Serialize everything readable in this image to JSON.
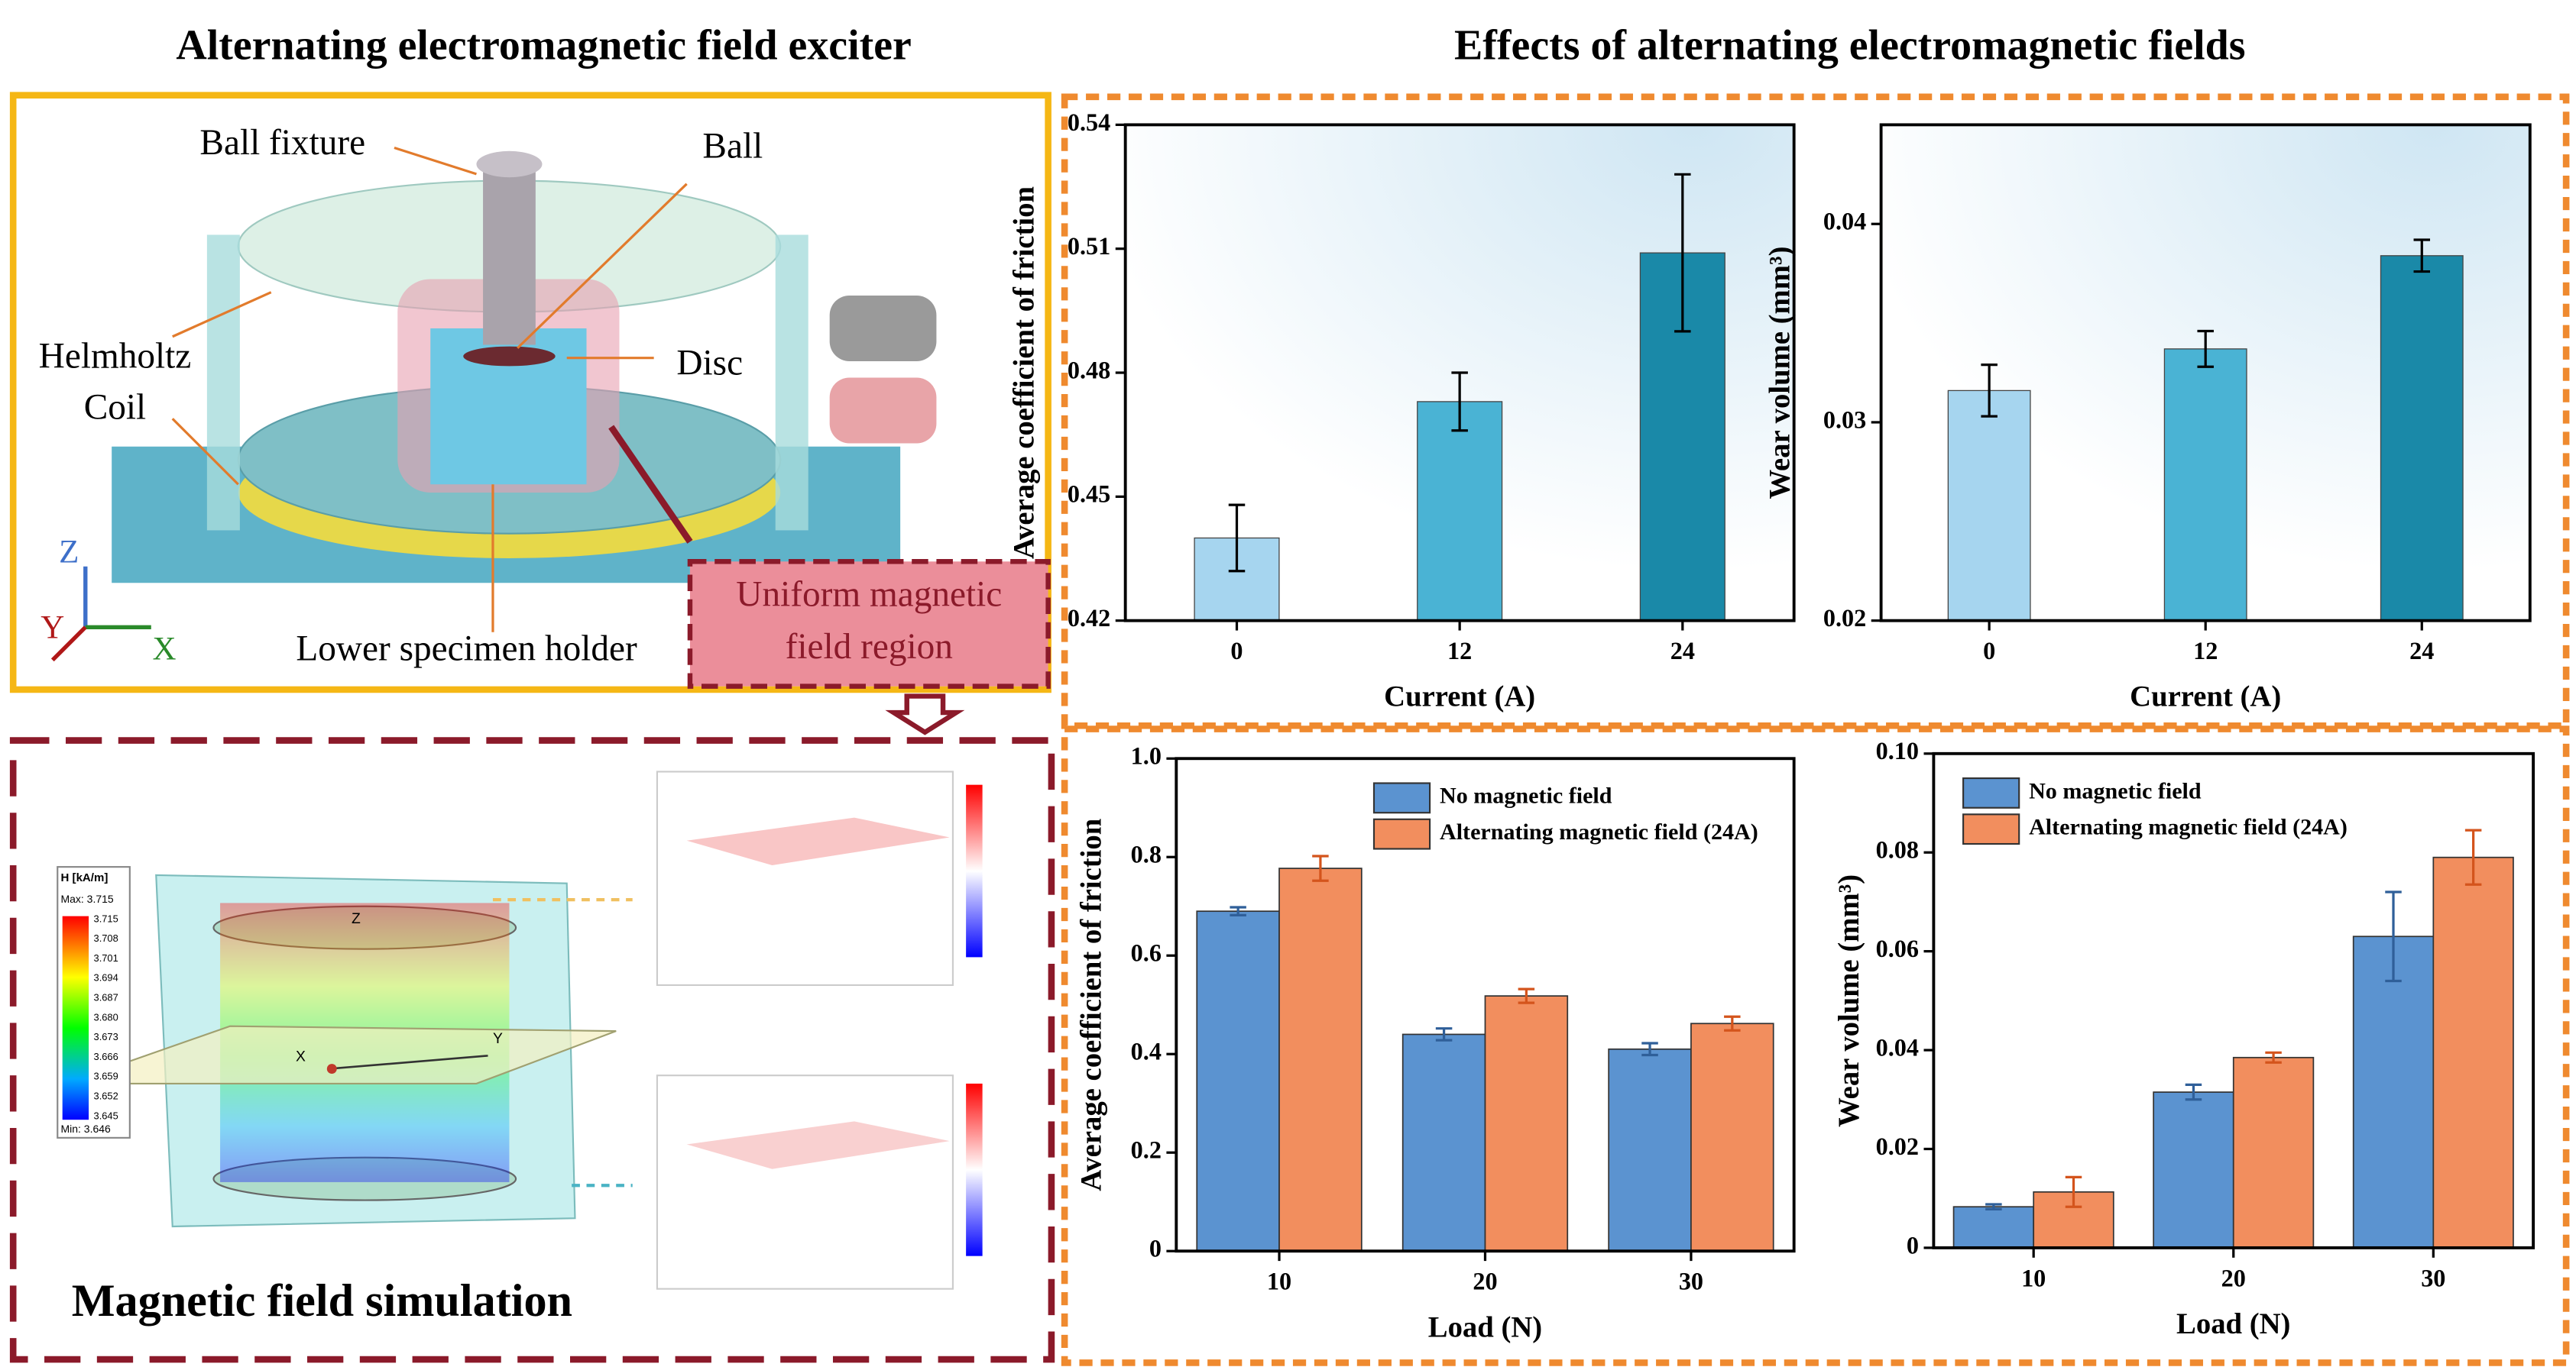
{
  "exciter": {
    "title": "Alternating electromagnetic field exciter",
    "ball_fixture": "Ball fixture",
    "ball": "Ball",
    "coil": [
      "Helmholtz",
      "Coil"
    ],
    "disc": "Disc",
    "holder": "Lower specimen holder",
    "region": [
      "Uniform magnetic",
      "field region"
    ],
    "axes": [
      "Z",
      "Y",
      "X"
    ]
  },
  "simulation": {
    "title": "Magnetic field simulation",
    "unit": "H [kA/m]",
    "max": "Max: 3.715",
    "min": "Min: 3.646",
    "scale": [
      "3.715",
      "3.708",
      "3.701",
      "3.694",
      "3.687",
      "3.680",
      "3.673",
      "3.666",
      "3.659",
      "3.652",
      "3.645"
    ],
    "axes": [
      "Z",
      "X",
      "Y"
    ]
  },
  "effects_title": "Effects of alternating electromagnetic fields",
  "charts": [
    {
      "type": "bar",
      "xlabel": "Current (A)",
      "ylabel": "Average coefficient of friction",
      "categories": [
        "0",
        "12",
        "24"
      ],
      "values": [
        0.44,
        0.473,
        0.509
      ],
      "errors": [
        0.008,
        0.007,
        0.019
      ],
      "colors": [
        "#a6d5ef",
        "#4ab3d4",
        "#1a89a8"
      ],
      "ylim": [
        0.42,
        0.54
      ],
      "yticks": [
        0.42,
        0.45,
        0.48,
        0.51,
        0.54
      ]
    },
    {
      "type": "bar",
      "xlabel": "Current (A)",
      "ylabel": "Wear volume (mm³)",
      "categories": [
        "0",
        "12",
        "24"
      ],
      "values": [
        0.0316,
        0.0337,
        0.0384
      ],
      "errors": [
        0.0013,
        0.0009,
        0.0008
      ],
      "colors": [
        "#a6d5ef",
        "#4ab3d4",
        "#1a89a8"
      ],
      "ylim": [
        0.02,
        0.045
      ],
      "yticks": [
        0.02,
        0.03,
        0.04
      ]
    },
    {
      "type": "grouped_bar",
      "xlabel": "Load (N)",
      "ylabel": "Average coefficient of friction",
      "categories": [
        "10",
        "20",
        "30"
      ],
      "legend": "upper center",
      "series": [
        {
          "name": "No magnetic field",
          "color": "#5b93d0",
          "error_color": "#2f5f99",
          "values": [
            0.69,
            0.44,
            0.41
          ],
          "errors": [
            0.008,
            0.012,
            0.012
          ]
        },
        {
          "name": "Alternating magnetic field (24A)",
          "color": "#f28e5e",
          "error_color": "#d4541c",
          "values": [
            0.777,
            0.518,
            0.462
          ],
          "errors": [
            0.025,
            0.014,
            0.014
          ]
        }
      ],
      "ylim": [
        0,
        1
      ],
      "yticks": [
        0,
        0.2,
        0.4,
        0.6,
        0.8,
        {
          "value": 1,
          "label": "1.0"
        }
      ]
    },
    {
      "type": "grouped_bar",
      "xlabel": "Load (N)",
      "ylabel": "Wear volume (mm³)",
      "categories": [
        "10",
        "20",
        "30"
      ],
      "legend": "upper left",
      "series": [
        {
          "name": "No magnetic field",
          "color": "#5b93d0",
          "error_color": "#2f5f99",
          "values": [
            0.0083,
            0.0315,
            0.063
          ],
          "errors": [
            0.0005,
            0.0015,
            0.009
          ]
        },
        {
          "name": "Alternating magnetic field  (24A)",
          "color": "#f28e5e",
          "error_color": "#d4541c",
          "values": [
            0.0113,
            0.0385,
            0.079
          ],
          "errors": [
            0.003,
            0.001,
            0.0055
          ]
        }
      ],
      "ylim": [
        0,
        0.1
      ],
      "yticks": [
        0,
        0.02,
        0.04,
        0.06,
        0.08,
        {
          "value": 0.1,
          "label": "0.10"
        }
      ]
    }
  ]
}
